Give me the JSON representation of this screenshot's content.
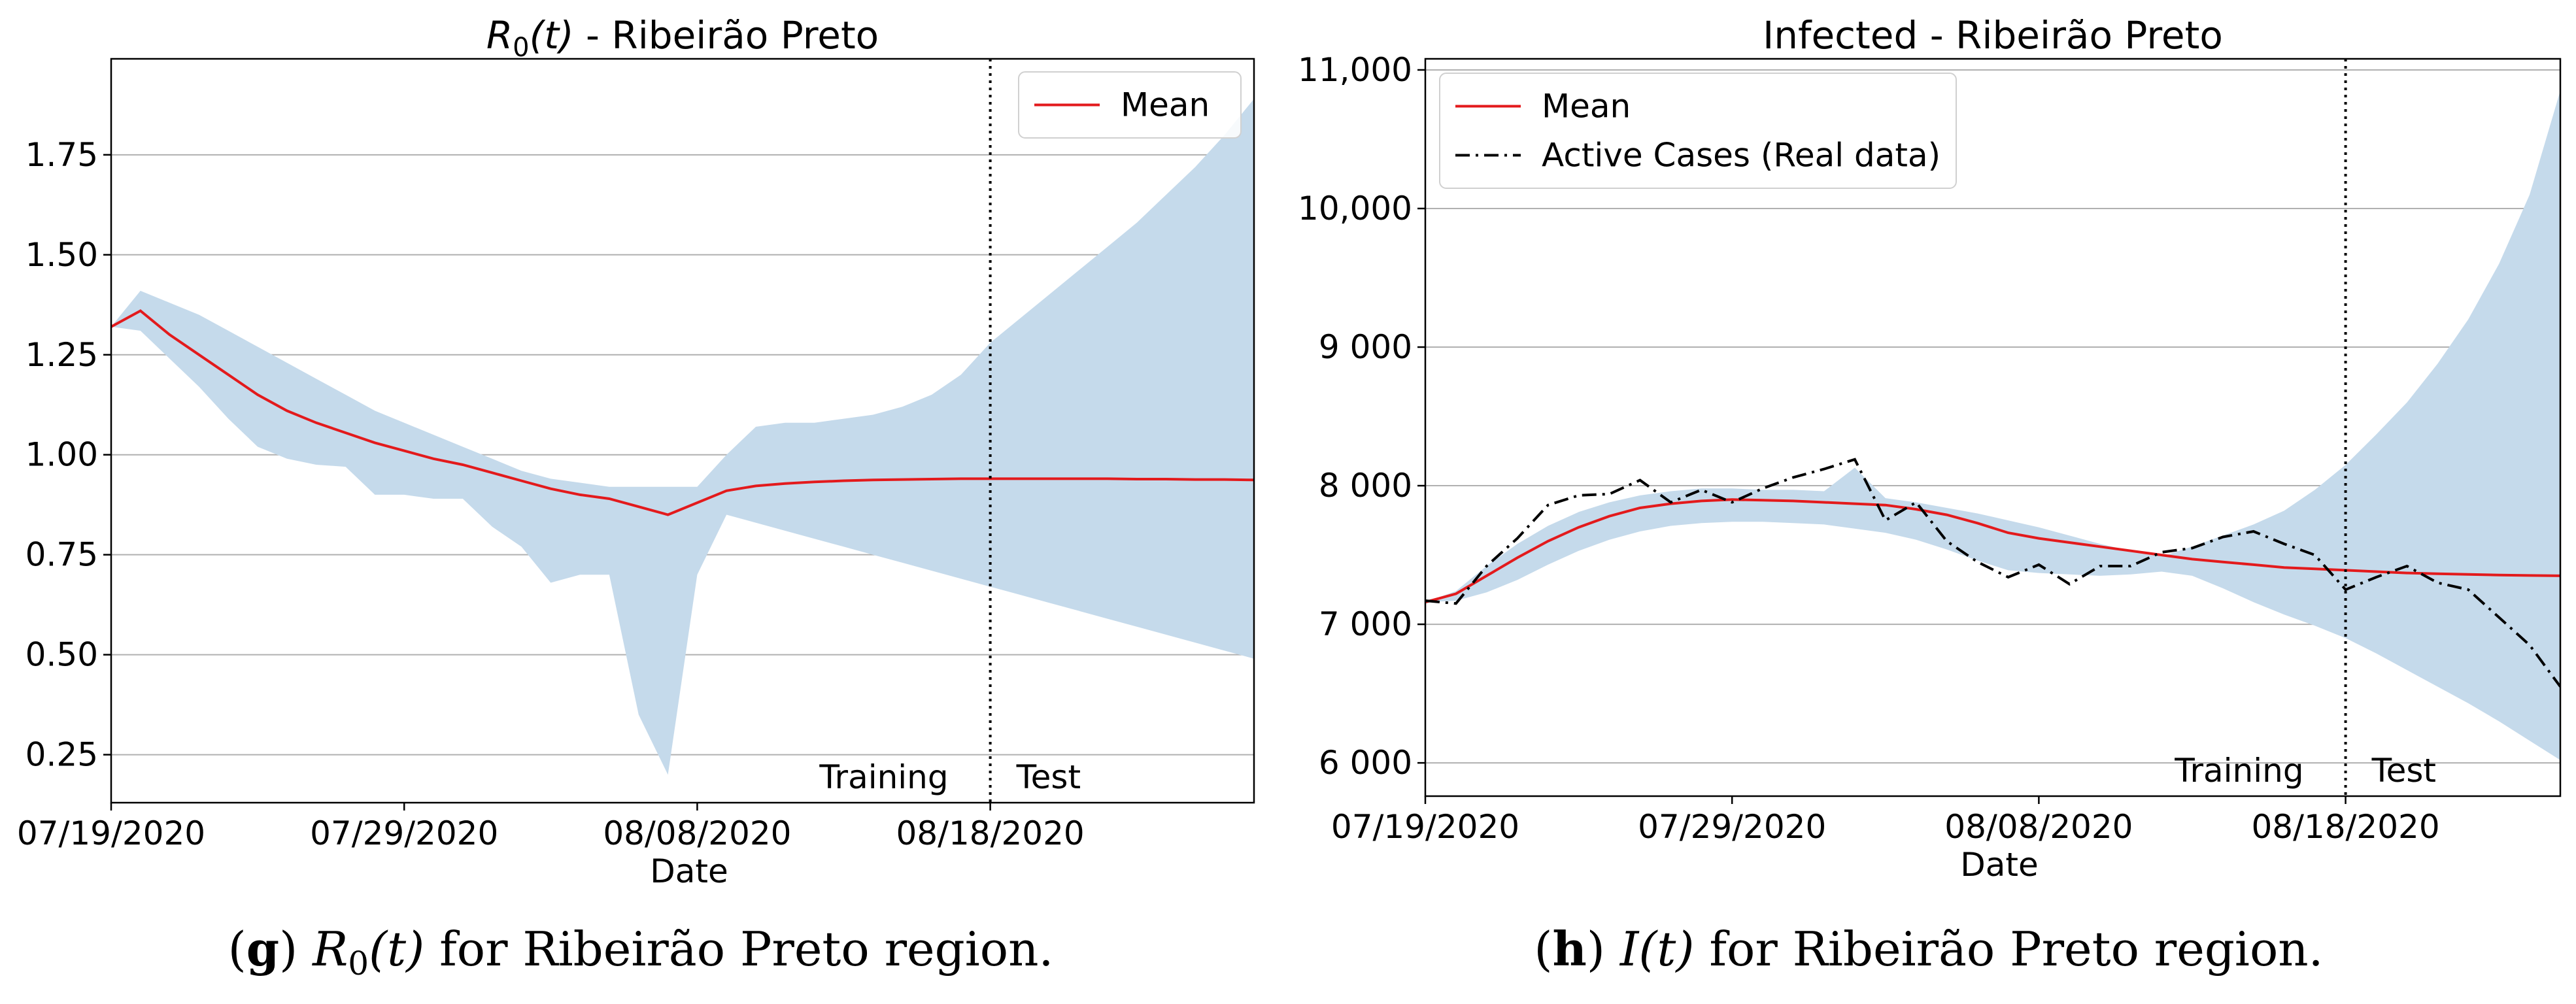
{
  "colors": {
    "mean": "#e31a1c",
    "band": "#c5daeb",
    "real": "#000000",
    "grid": "#b0b0b0",
    "frame": "#000000"
  },
  "chart_data": [
    {
      "type": "line",
      "title": "R_0(t) - Ribeirão Preto",
      "title_parts": [
        "R",
        "0",
        "(t)",
        " - Ribeirão Preto"
      ],
      "xlabel": "Date",
      "ylabel": "",
      "x_day_range": [
        0,
        39
      ],
      "xticks": [
        {
          "day": 0,
          "label": "07/19/2020"
        },
        {
          "day": 10,
          "label": "07/29/2020"
        },
        {
          "day": 20,
          "label": "08/08/2020"
        },
        {
          "day": 30,
          "label": "08/18/2020"
        }
      ],
      "ylim": [
        0.13,
        1.99
      ],
      "yticks": [
        {
          "value": 0.25,
          "label": "0.25"
        },
        {
          "value": 0.5,
          "label": "0.50"
        },
        {
          "value": 0.75,
          "label": "0.75"
        },
        {
          "value": 1.0,
          "label": "1.00"
        },
        {
          "value": 1.25,
          "label": "1.25"
        },
        {
          "value": 1.5,
          "label": "1.50"
        },
        {
          "value": 1.75,
          "label": "1.75"
        }
      ],
      "grid": "horizontal",
      "split_day": 30,
      "split_labels": {
        "left": "Training",
        "right": "Test"
      },
      "legend": {
        "position": "top-right",
        "entries": [
          "Mean"
        ]
      },
      "mean": {
        "name": "Mean",
        "x": [
          0,
          1,
          2,
          3,
          4,
          5,
          6,
          7,
          8,
          9,
          10,
          11,
          12,
          13,
          14,
          15,
          16,
          17,
          18,
          19,
          20,
          21,
          22,
          23,
          24,
          25,
          26,
          27,
          28,
          29,
          30,
          31,
          32,
          33,
          34,
          35,
          36,
          37,
          38,
          39
        ],
        "y": [
          1.32,
          1.36,
          1.3,
          1.25,
          1.2,
          1.15,
          1.11,
          1.08,
          1.055,
          1.03,
          1.01,
          0.99,
          0.975,
          0.955,
          0.935,
          0.915,
          0.9,
          0.89,
          0.87,
          0.85,
          0.88,
          0.91,
          0.922,
          0.928,
          0.932,
          0.935,
          0.937,
          0.938,
          0.939,
          0.94,
          0.94,
          0.94,
          0.94,
          0.94,
          0.94,
          0.939,
          0.939,
          0.938,
          0.938,
          0.937
        ]
      },
      "band": {
        "x": [
          0,
          1,
          2,
          3,
          4,
          5,
          6,
          7,
          8,
          9,
          10,
          11,
          12,
          13,
          14,
          15,
          16,
          17,
          18,
          19,
          20,
          21,
          22,
          23,
          24,
          25,
          26,
          27,
          28,
          29,
          30,
          31,
          32,
          33,
          34,
          35,
          36,
          37,
          38,
          39
        ],
        "upper": [
          1.32,
          1.41,
          1.38,
          1.35,
          1.31,
          1.27,
          1.23,
          1.19,
          1.15,
          1.11,
          1.08,
          1.05,
          1.02,
          0.99,
          0.96,
          0.94,
          0.93,
          0.92,
          0.92,
          0.92,
          0.92,
          1.0,
          1.07,
          1.08,
          1.08,
          1.09,
          1.1,
          1.12,
          1.15,
          1.2,
          1.28,
          1.34,
          1.4,
          1.46,
          1.52,
          1.58,
          1.65,
          1.72,
          1.8,
          1.89
        ],
        "lower": [
          1.32,
          1.31,
          1.24,
          1.17,
          1.09,
          1.02,
          0.99,
          0.975,
          0.97,
          0.9,
          0.9,
          0.89,
          0.89,
          0.82,
          0.77,
          0.68,
          0.7,
          0.7,
          0.35,
          0.2,
          0.7,
          0.85,
          0.83,
          0.81,
          0.79,
          0.77,
          0.75,
          0.73,
          0.71,
          0.69,
          0.67,
          0.65,
          0.63,
          0.61,
          0.59,
          0.57,
          0.55,
          0.53,
          0.51,
          0.49
        ]
      },
      "caption": {
        "letter": "g",
        "math": "R",
        "sub": "0",
        "arg": "(t)",
        "rest": " for Ribeirão Preto region."
      }
    },
    {
      "type": "line",
      "title": "Infected - Ribeirão Preto",
      "title_parts": [
        "Infected - Ribeirão Preto"
      ],
      "xlabel": "Date",
      "ylabel": "",
      "x_day_range": [
        0,
        37
      ],
      "xticks": [
        {
          "day": 0,
          "label": "07/19/2020"
        },
        {
          "day": 10,
          "label": "07/29/2020"
        },
        {
          "day": 20,
          "label": "08/08/2020"
        },
        {
          "day": 30,
          "label": "08/18/2020"
        }
      ],
      "ylim": [
        5760,
        11080
      ],
      "yticks": [
        {
          "value": 6000,
          "label": "6 000"
        },
        {
          "value": 7000,
          "label": "7 000"
        },
        {
          "value": 8000,
          "label": "8 000"
        },
        {
          "value": 9000,
          "label": "9 000"
        },
        {
          "value": 10000,
          "label": "10,000"
        },
        {
          "value": 11000,
          "label": "11,000"
        }
      ],
      "grid": "horizontal",
      "split_day": 30,
      "split_labels": {
        "left": "Training",
        "right": "Test"
      },
      "legend": {
        "position": "top-left",
        "entries": [
          "Mean",
          "Active Cases (Real data)"
        ]
      },
      "mean": {
        "name": "Mean",
        "x": [
          0,
          1,
          2,
          3,
          4,
          5,
          6,
          7,
          8,
          9,
          10,
          11,
          12,
          13,
          14,
          15,
          16,
          17,
          18,
          19,
          20,
          21,
          22,
          23,
          24,
          25,
          26,
          27,
          28,
          29,
          30,
          31,
          32,
          33,
          34,
          35,
          36,
          37
        ],
        "y": [
          7160,
          7220,
          7350,
          7480,
          7600,
          7700,
          7780,
          7840,
          7870,
          7890,
          7900,
          7895,
          7890,
          7880,
          7870,
          7860,
          7830,
          7790,
          7730,
          7660,
          7620,
          7590,
          7560,
          7530,
          7500,
          7470,
          7450,
          7430,
          7410,
          7400,
          7390,
          7380,
          7370,
          7365,
          7360,
          7355,
          7352,
          7350
        ]
      },
      "real": {
        "name": "Active Cases (Real data)",
        "x": [
          0,
          1,
          2,
          3,
          4,
          5,
          6,
          7,
          8,
          9,
          10,
          11,
          12,
          13,
          14,
          15,
          16,
          17,
          18,
          19,
          20,
          21,
          22,
          23,
          24,
          25,
          26,
          27,
          28,
          29,
          30,
          31,
          32,
          33,
          34,
          35,
          36,
          37
        ],
        "y": [
          7170,
          7150,
          7420,
          7620,
          7860,
          7930,
          7940,
          8040,
          7880,
          7970,
          7880,
          7980,
          8060,
          8120,
          8190,
          7750,
          7880,
          7600,
          7450,
          7340,
          7430,
          7290,
          7420,
          7420,
          7520,
          7550,
          7630,
          7670,
          7580,
          7500,
          7250,
          7340,
          7420,
          7300,
          7250,
          7050,
          6850,
          6550
        ]
      },
      "band": {
        "x": [
          0,
          1,
          2,
          3,
          4,
          5,
          6,
          7,
          8,
          9,
          10,
          11,
          12,
          13,
          14,
          15,
          16,
          17,
          18,
          19,
          20,
          21,
          22,
          23,
          24,
          25,
          26,
          27,
          28,
          29,
          30,
          31,
          32,
          33,
          34,
          35,
          36,
          37
        ],
        "upper": [
          7160,
          7240,
          7420,
          7580,
          7710,
          7810,
          7880,
          7930,
          7960,
          7980,
          7980,
          7970,
          7970,
          7960,
          8130,
          7910,
          7880,
          7840,
          7800,
          7750,
          7700,
          7640,
          7580,
          7530,
          7490,
          7560,
          7640,
          7720,
          7820,
          7970,
          8150,
          8370,
          8600,
          8880,
          9200,
          9600,
          10100,
          10850
        ],
        "lower": [
          7160,
          7170,
          7230,
          7320,
          7430,
          7530,
          7610,
          7670,
          7710,
          7730,
          7740,
          7740,
          7730,
          7720,
          7690,
          7660,
          7610,
          7540,
          7460,
          7390,
          7370,
          7360,
          7350,
          7360,
          7380,
          7350,
          7260,
          7160,
          7070,
          6990,
          6900,
          6790,
          6670,
          6550,
          6430,
          6300,
          6160,
          6020
        ]
      },
      "caption": {
        "letter": "h",
        "math": "I",
        "sub": "",
        "arg": "(t)",
        "rest": " for Ribeirão Preto region."
      }
    }
  ]
}
